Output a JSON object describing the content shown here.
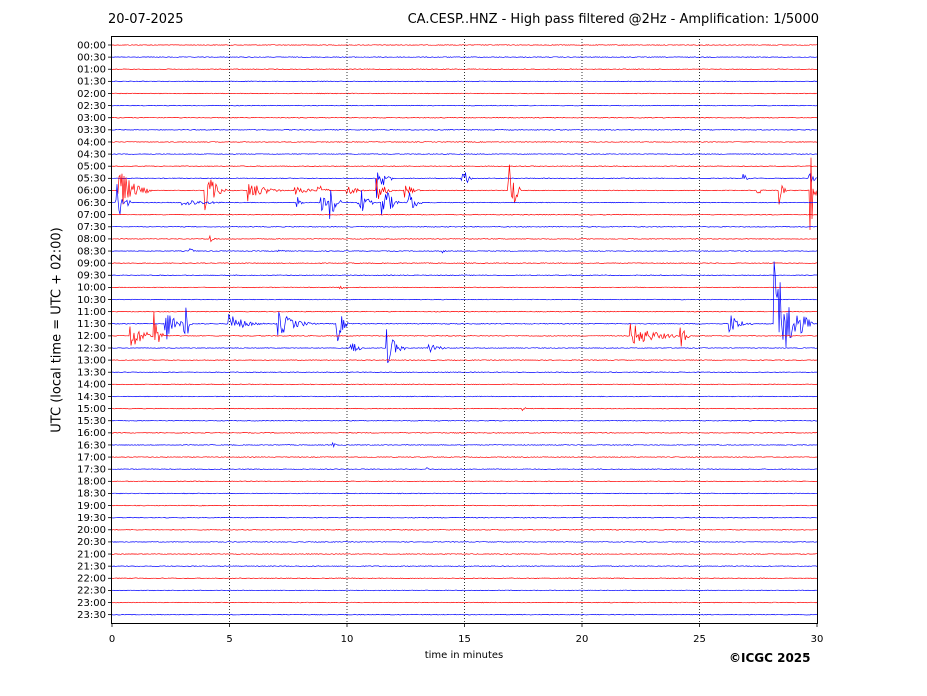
{
  "header": {
    "date": "20-07-2025",
    "title": "CA.CESP..HNZ - High pass filtered @2Hz - Amplification: 1/5000"
  },
  "footer": {
    "copyright": "©ICGC 2025"
  },
  "chart_data": {
    "type": "line",
    "title": "CA.CESP..HNZ - High pass filtered @2Hz - Amplification: 1/5000",
    "xlabel": "time in minutes",
    "ylabel": "UTC (local time = UTC + 02:00)",
    "xlim": [
      0,
      30
    ],
    "xticks": [
      0,
      5,
      10,
      15,
      20,
      25,
      30
    ],
    "x_gridlines": [
      5,
      10,
      15,
      20,
      25
    ],
    "grid": "vertical dotted",
    "rows": [
      "00:00",
      "00:30",
      "01:00",
      "01:30",
      "02:00",
      "02:30",
      "03:00",
      "03:30",
      "04:00",
      "04:30",
      "05:00",
      "05:30",
      "06:00",
      "06:30",
      "07:00",
      "07:30",
      "08:00",
      "08:30",
      "09:00",
      "09:30",
      "10:00",
      "10:30",
      "11:00",
      "11:30",
      "12:00",
      "12:30",
      "13:00",
      "13:30",
      "14:00",
      "14:30",
      "15:00",
      "15:30",
      "16:00",
      "16:30",
      "17:00",
      "17:30",
      "18:00",
      "18:30",
      "19:00",
      "19:30",
      "20:00",
      "20:30",
      "21:00",
      "21:30",
      "22:00",
      "22:30",
      "23:00",
      "23:30"
    ],
    "trace_colors": [
      "#ff0000",
      "#0000ff"
    ],
    "events": [
      {
        "row": 11,
        "minute": 11.3,
        "amplitude": 2.2,
        "duration": 0.6
      },
      {
        "row": 11,
        "minute": 14.9,
        "amplitude": 1.6,
        "duration": 0.4
      },
      {
        "row": 11,
        "minute": 26.9,
        "amplitude": 0.4,
        "duration": 0.3
      },
      {
        "row": 11,
        "minute": 29.7,
        "amplitude": 0.8,
        "duration": 0.4
      },
      {
        "row": 12,
        "minute": 0.3,
        "amplitude": 2.2,
        "duration": 1.4
      },
      {
        "row": 12,
        "minute": 4.0,
        "amplitude": 2.0,
        "duration": 0.9
      },
      {
        "row": 12,
        "minute": 5.8,
        "amplitude": 1.0,
        "duration": 1.6
      },
      {
        "row": 12,
        "minute": 7.8,
        "amplitude": 0.5,
        "duration": 1.2
      },
      {
        "row": 12,
        "minute": 8.8,
        "amplitude": 0.8,
        "duration": 0.5
      },
      {
        "row": 12,
        "minute": 10.0,
        "amplitude": 0.5,
        "duration": 1.0
      },
      {
        "row": 12,
        "minute": 11.3,
        "amplitude": 1.3,
        "duration": 0.6
      },
      {
        "row": 12,
        "minute": 12.5,
        "amplitude": 0.8,
        "duration": 0.6
      },
      {
        "row": 12,
        "minute": 16.9,
        "amplitude": 3.8,
        "duration": 0.5
      },
      {
        "row": 12,
        "minute": 27.5,
        "amplitude": 0.5,
        "duration": 0.4
      },
      {
        "row": 12,
        "minute": 28.4,
        "amplitude": 1.3,
        "duration": 0.3
      },
      {
        "row": 12,
        "minute": 29.7,
        "amplitude": 7.0,
        "duration": 0.3
      },
      {
        "row": 13,
        "minute": 0.2,
        "amplitude": 2.4,
        "duration": 0.6
      },
      {
        "row": 13,
        "minute": 3.0,
        "amplitude": 0.4,
        "duration": 2.5
      },
      {
        "row": 13,
        "minute": 7.9,
        "amplitude": 0.6,
        "duration": 0.3
      },
      {
        "row": 13,
        "minute": 8.9,
        "amplitude": 1.0,
        "duration": 0.4
      },
      {
        "row": 13,
        "minute": 9.3,
        "amplitude": 1.8,
        "duration": 0.5
      },
      {
        "row": 13,
        "minute": 10.5,
        "amplitude": 2.0,
        "duration": 0.6
      },
      {
        "row": 13,
        "minute": 11.5,
        "amplitude": 2.4,
        "duration": 0.7
      },
      {
        "row": 13,
        "minute": 12.6,
        "amplitude": 1.6,
        "duration": 0.6
      },
      {
        "row": 16,
        "minute": 4.2,
        "amplitude": 0.4,
        "duration": 0.3
      },
      {
        "row": 17,
        "minute": 3.3,
        "amplitude": 0.4,
        "duration": 0.3
      },
      {
        "row": 17,
        "minute": 7.1,
        "amplitude": 0.3,
        "duration": 0.3
      },
      {
        "row": 17,
        "minute": 14.0,
        "amplitude": 0.3,
        "duration": 0.3
      },
      {
        "row": 20,
        "minute": 9.7,
        "amplitude": 0.25,
        "duration": 0.4
      },
      {
        "row": 23,
        "minute": 2.3,
        "amplitude": 1.8,
        "duration": 0.8
      },
      {
        "row": 23,
        "minute": 3.1,
        "amplitude": 2.8,
        "duration": 0.3
      },
      {
        "row": 23,
        "minute": 5.0,
        "amplitude": 1.0,
        "duration": 1.5
      },
      {
        "row": 23,
        "minute": 7.1,
        "amplitude": 1.2,
        "duration": 1.6
      },
      {
        "row": 23,
        "minute": 9.6,
        "amplitude": 1.8,
        "duration": 0.5
      },
      {
        "row": 23,
        "minute": 26.3,
        "amplitude": 1.0,
        "duration": 1.0
      },
      {
        "row": 23,
        "minute": 28.2,
        "amplitude": 6.0,
        "duration": 1.6
      },
      {
        "row": 24,
        "minute": 0.8,
        "amplitude": 1.3,
        "duration": 1.4
      },
      {
        "row": 24,
        "minute": 1.8,
        "amplitude": 2.2,
        "duration": 0.4
      },
      {
        "row": 24,
        "minute": 22.1,
        "amplitude": 1.2,
        "duration": 2.3
      },
      {
        "row": 24,
        "minute": 24.2,
        "amplitude": 1.3,
        "duration": 0.4
      },
      {
        "row": 25,
        "minute": 10.2,
        "amplitude": 0.8,
        "duration": 0.6
      },
      {
        "row": 25,
        "minute": 11.7,
        "amplitude": 1.8,
        "duration": 0.8
      },
      {
        "row": 25,
        "minute": 13.5,
        "amplitude": 0.5,
        "duration": 1.0
      },
      {
        "row": 30,
        "minute": 17.5,
        "amplitude": 0.2,
        "duration": 0.3
      },
      {
        "row": 33,
        "minute": 9.4,
        "amplitude": 0.25,
        "duration": 0.3
      },
      {
        "row": 35,
        "minute": 13.4,
        "amplitude": 0.2,
        "duration": 0.2
      },
      {
        "row": 35,
        "minute": 24.7,
        "amplitude": 0.2,
        "duration": 0.2
      }
    ]
  }
}
